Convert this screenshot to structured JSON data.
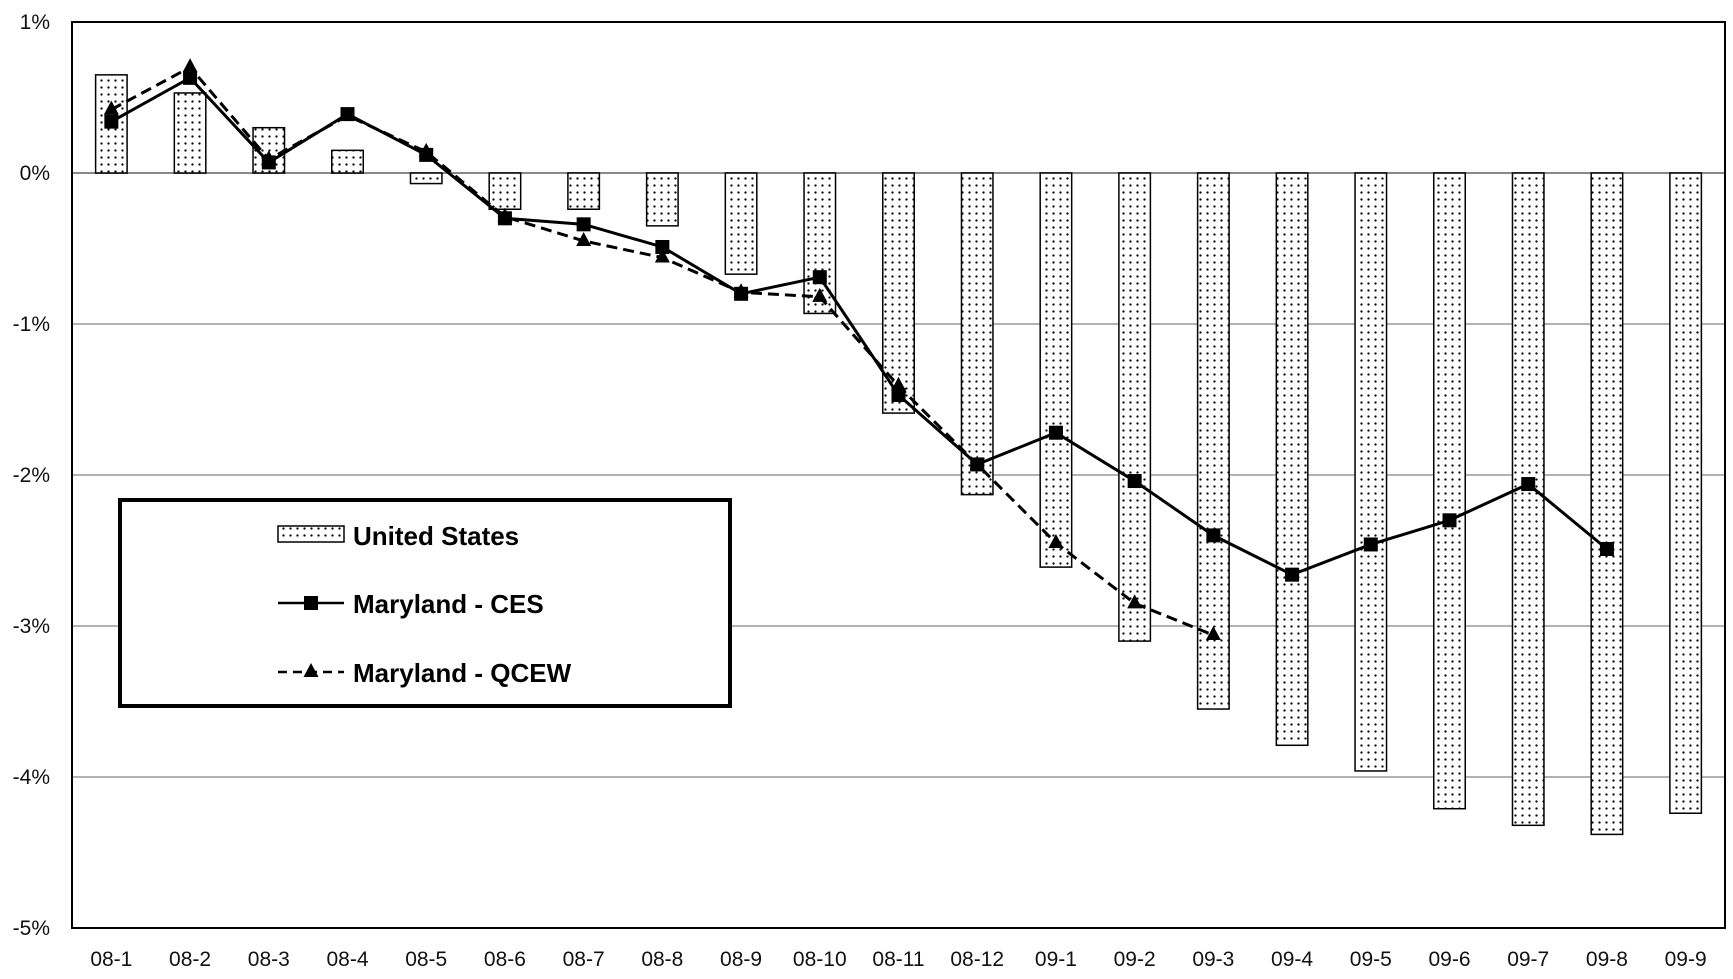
{
  "chart_data": {
    "type": "bar",
    "title": "",
    "xlabel": "",
    "ylabel": "",
    "ylim": [
      -5,
      1
    ],
    "y_ticks": [
      1,
      0,
      -1,
      -2,
      -3,
      -4,
      -5
    ],
    "y_tick_labels": [
      "1%",
      "0%",
      "-1%",
      "-2%",
      "-3%",
      "-4%",
      "-5%"
    ],
    "grid": true,
    "legend_position": "bottom-left",
    "categories": [
      "08-1",
      "08-2",
      "08-3",
      "08-4",
      "08-5",
      "08-6",
      "08-7",
      "08-8",
      "08-9",
      "08-10",
      "08-11",
      "08-12",
      "09-1",
      "09-2",
      "09-3",
      "09-4",
      "09-5",
      "09-6",
      "09-7",
      "09-8",
      "09-9"
    ],
    "series": [
      {
        "name": "United States",
        "kind": "bar",
        "pattern": "dotted",
        "values": [
          0.65,
          0.53,
          0.3,
          0.15,
          -0.07,
          -0.24,
          -0.24,
          -0.35,
          -0.67,
          -0.93,
          -1.59,
          -2.13,
          -2.61,
          -3.1,
          -3.55,
          -3.79,
          -3.96,
          -4.21,
          -4.32,
          -4.38,
          -4.24
        ]
      },
      {
        "name": "Maryland - CES",
        "kind": "line",
        "marker": "square",
        "dash": "solid",
        "values": [
          0.34,
          0.63,
          0.07,
          0.39,
          0.12,
          -0.3,
          -0.34,
          -0.49,
          -0.8,
          -0.69,
          -1.47,
          -1.93,
          -1.72,
          -2.04,
          -2.4,
          -2.66,
          -2.46,
          -2.3,
          -2.06,
          -2.49,
          null
        ]
      },
      {
        "name": "Maryland - QCEW",
        "kind": "line",
        "marker": "triangle",
        "dash": "dashed",
        "values": [
          0.42,
          0.7,
          0.09,
          0.38,
          0.14,
          -0.29,
          -0.45,
          -0.56,
          -0.79,
          -0.82,
          -1.41,
          -1.93,
          -2.45,
          -2.85,
          -3.06,
          null,
          null,
          null,
          null,
          null,
          null
        ]
      }
    ],
    "colors": {
      "frame": "#000000",
      "grid": "#999999",
      "line": "#000000",
      "bar_fill": "#ffffff",
      "bar_dot": "#000000"
    }
  }
}
